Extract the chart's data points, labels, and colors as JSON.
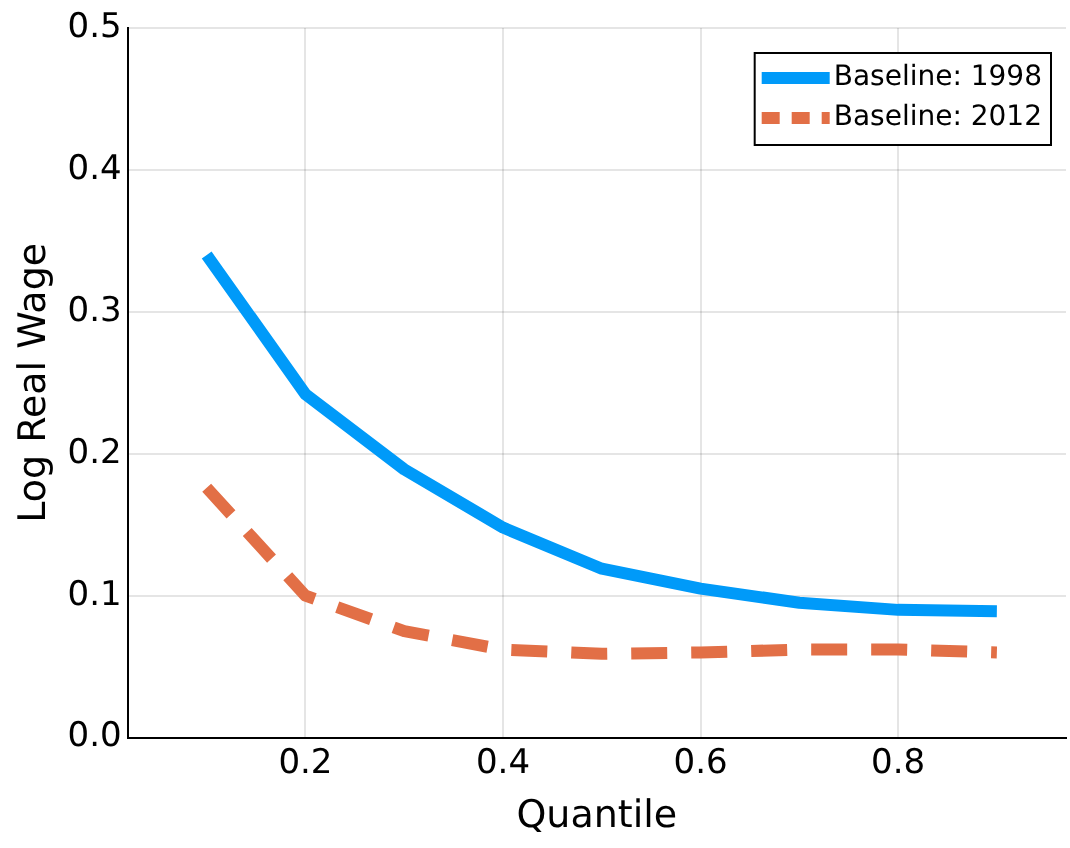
{
  "chart_data": {
    "type": "line",
    "xlabel": "Quantile",
    "ylabel": "Log Real Wage",
    "x": [
      0.1,
      0.2,
      0.3,
      0.4,
      0.5,
      0.6,
      0.7,
      0.8,
      0.9
    ],
    "series": [
      {
        "name": "Baseline: 1998",
        "color": "#009af9",
        "values": [
          0.34,
          0.242,
          0.189,
          0.148,
          0.119,
          0.105,
          0.095,
          0.09,
          0.089
        ]
      },
      {
        "name": "Baseline: 2012",
        "color": "#e26f46",
        "line_style": "dashed",
        "values": [
          0.176,
          0.1,
          0.075,
          0.062,
          0.059,
          0.06,
          0.062,
          0.062,
          0.06
        ]
      }
    ],
    "xlim": [
      0.02,
      0.97
    ],
    "xticks": [
      0.2,
      0.4,
      0.6,
      0.8
    ],
    "ylim": [
      0,
      0.5
    ],
    "yticks": [
      {
        "value": 0,
        "label": "0.0"
      },
      0.1,
      0.2,
      0.3,
      0.4,
      0.5
    ],
    "grid": true,
    "legend": "top right",
    "marker": "none",
    "line_style": "solid"
  }
}
